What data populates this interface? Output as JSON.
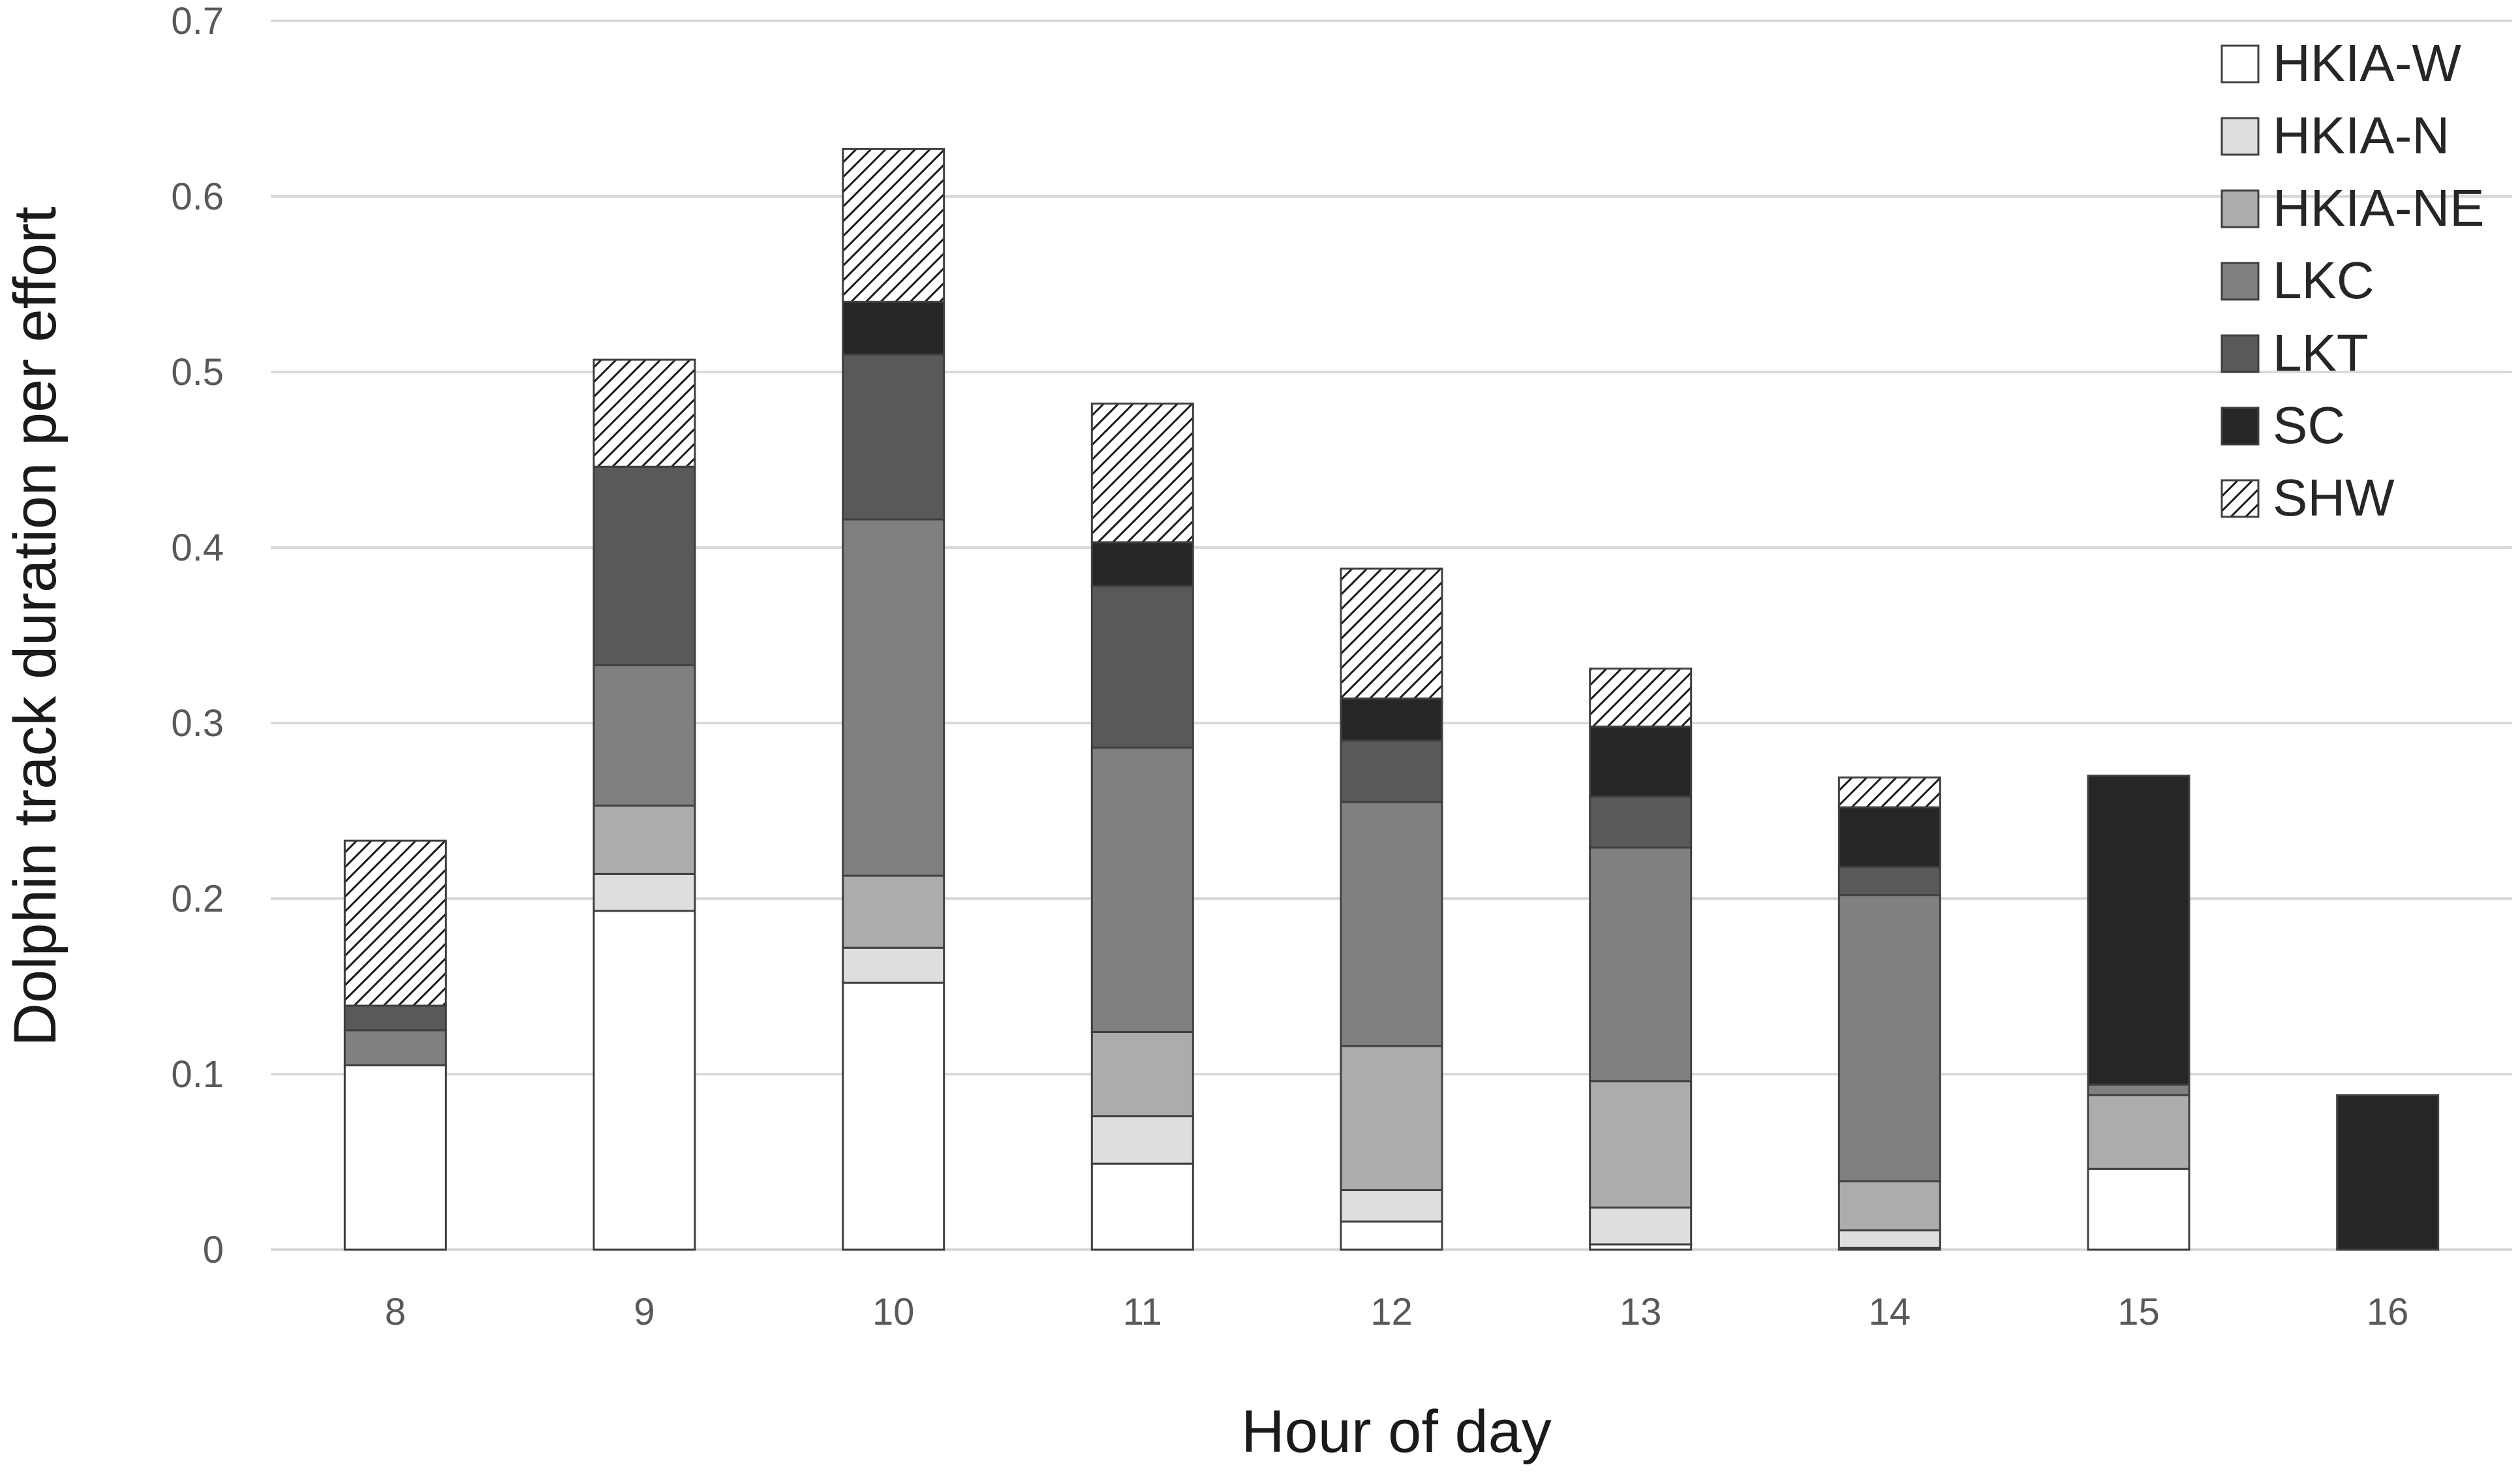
{
  "chart_data": {
    "type": "bar",
    "stacked": true,
    "title": "",
    "xlabel": "Hour of day",
    "ylabel": "Dolphin track duration per effort",
    "ylim": [
      0,
      0.7
    ],
    "yticks": [
      "0",
      "0.1",
      "0.2",
      "0.3",
      "0.4",
      "0.5",
      "0.6",
      "0.7"
    ],
    "categories": [
      "8",
      "9",
      "10",
      "11",
      "12",
      "13",
      "14",
      "15",
      "16"
    ],
    "grid": "horizontal",
    "legend_position": "top-right",
    "series": [
      {
        "name": "HKIA-W",
        "color": "#ffffff",
        "pattern": "none",
        "values": [
          0.105,
          0.193,
          0.152,
          0.049,
          0.016,
          0.003,
          0.001,
          0.046,
          0
        ]
      },
      {
        "name": "HKIA-N",
        "color": "#dedede",
        "pattern": "none",
        "values": [
          0,
          0.021,
          0.02,
          0.027,
          0.018,
          0.021,
          0.01,
          0,
          0
        ]
      },
      {
        "name": "HKIA-NE",
        "color": "#acacac",
        "pattern": "none",
        "values": [
          0,
          0.039,
          0.041,
          0.048,
          0.082,
          0.072,
          0.028,
          0.042,
          0
        ]
      },
      {
        "name": "LKC",
        "color": "#808080",
        "pattern": "none",
        "values": [
          0.02,
          0.08,
          0.203,
          0.162,
          0.139,
          0.133,
          0.163,
          0.006,
          0
        ]
      },
      {
        "name": "LKT",
        "color": "#595959",
        "pattern": "none",
        "values": [
          0.014,
          0.113,
          0.094,
          0.092,
          0.035,
          0.029,
          0.016,
          0,
          0
        ]
      },
      {
        "name": "SC",
        "color": "#262626",
        "pattern": "none",
        "values": [
          0,
          0,
          0.03,
          0.025,
          0.024,
          0.04,
          0.034,
          0.176,
          0.088
        ]
      },
      {
        "name": "SHW",
        "color": "#ffffff",
        "pattern": "hatch",
        "values": [
          0.094,
          0.061,
          0.087,
          0.079,
          0.074,
          0.033,
          0.017,
          0,
          0
        ]
      }
    ]
  }
}
